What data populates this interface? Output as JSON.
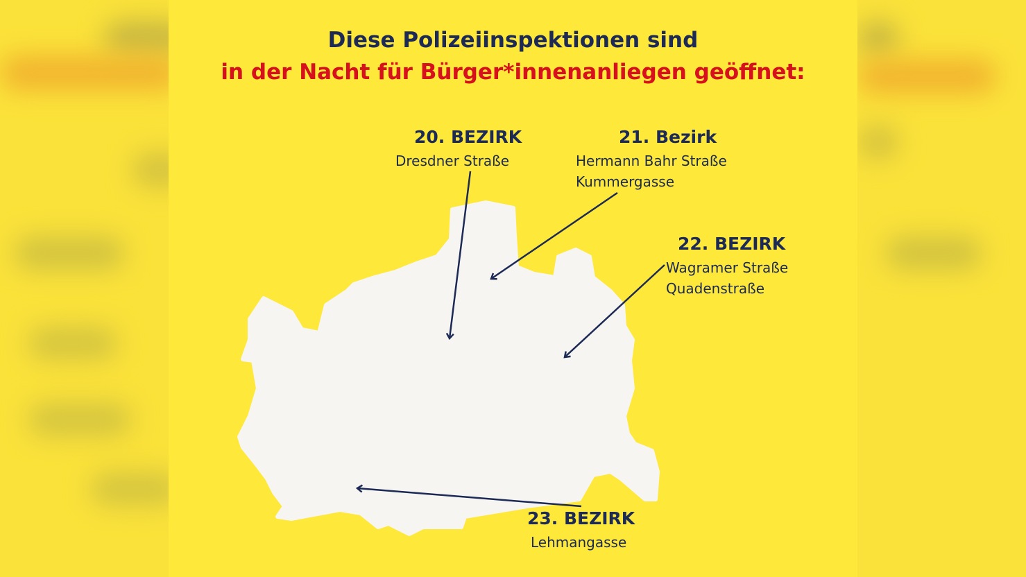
{
  "title": {
    "line1": "Diese Polizeiinspektionen sind",
    "line2": "in der Nacht für Bürger*innenanliegen geöffnet:"
  },
  "colors": {
    "background": "#fee83a",
    "map": "#f6f5f2",
    "navy": "#1c2a55",
    "red": "#d7101d"
  },
  "districts": [
    {
      "heading": "20. BEZIRK",
      "streets": [
        "Dresdner Straße"
      ]
    },
    {
      "heading": "21. Bezirk",
      "streets": [
        "Hermann Bahr Straße",
        "Kummergasse"
      ]
    },
    {
      "heading": "22. BEZIRK",
      "streets": [
        "Wagramer Straße",
        "Quadenstraße"
      ]
    },
    {
      "heading": "23. BEZIRK",
      "streets": [
        "Lehmangasse"
      ]
    }
  ]
}
